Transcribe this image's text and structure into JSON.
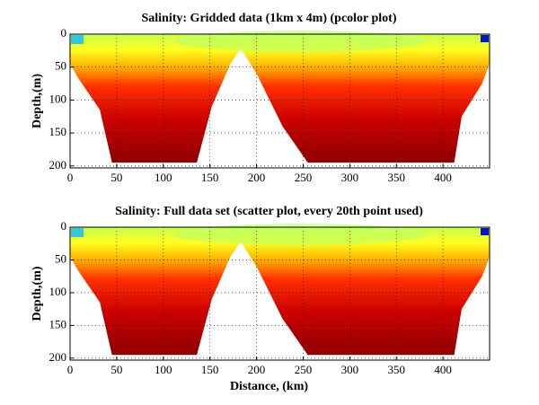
{
  "chart_data": [
    {
      "type": "heatmap",
      "title": "Salinity: Gridded data (1km x 4m) (pcolor plot)",
      "y_label": "Depth,(m)",
      "xlim": [
        0,
        450
      ],
      "ylim": [
        0,
        203
      ],
      "xticks": [
        0,
        50,
        100,
        150,
        200,
        250,
        300,
        350,
        400
      ],
      "yticks": [
        0,
        50,
        100,
        150,
        200
      ],
      "y_reversed": true,
      "grid": true
    },
    {
      "type": "heatmap",
      "title": "Salinity: Full data set (scatter plot, every 20th point used)",
      "y_label": "Depth,(m)",
      "x_label": "Distance, (km)",
      "xlim": [
        0,
        450
      ],
      "ylim": [
        0,
        203
      ],
      "xticks": [
        0,
        50,
        100,
        150,
        200,
        250,
        300,
        350,
        400
      ],
      "yticks": [
        0,
        50,
        100,
        150,
        200
      ],
      "y_reversed": true,
      "grid": true
    }
  ]
}
